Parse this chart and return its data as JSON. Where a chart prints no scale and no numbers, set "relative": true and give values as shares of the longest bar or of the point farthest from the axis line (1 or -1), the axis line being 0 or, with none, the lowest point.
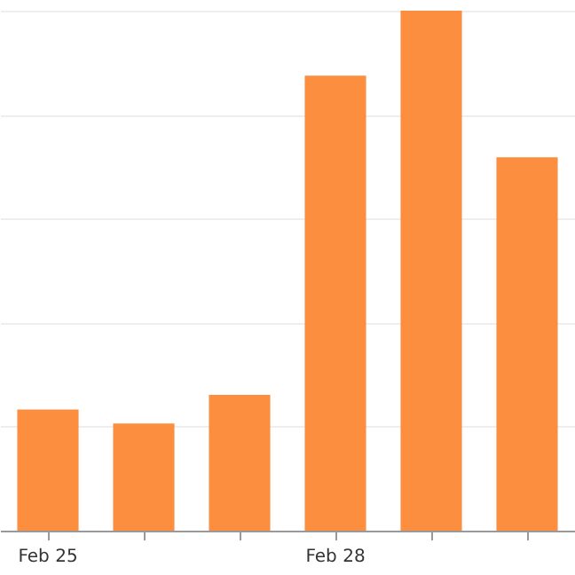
{
  "chart_data": {
    "type": "bar",
    "relative": true,
    "categories": [
      "Feb 25",
      null,
      null,
      "Feb 28",
      null,
      null
    ],
    "values": [
      0.233,
      0.206,
      0.261,
      0.875,
      1,
      0.718
    ],
    "color": "#fb8f3f",
    "grid": "y"
  }
}
